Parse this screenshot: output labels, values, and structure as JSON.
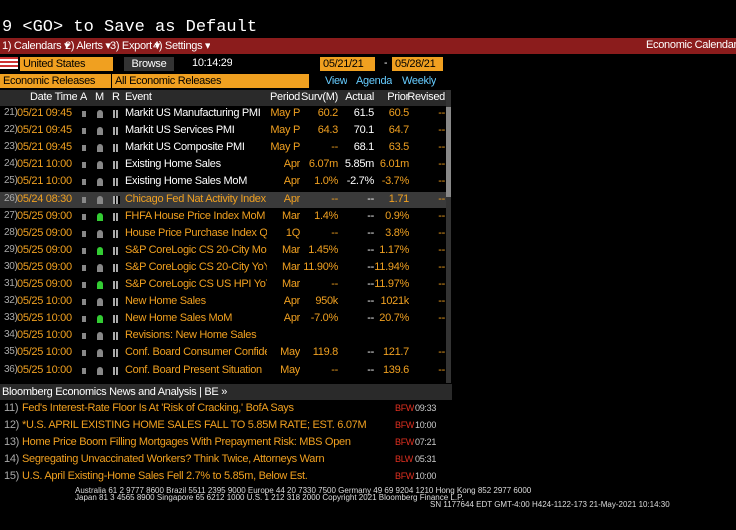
{
  "header": {
    "command": "9 <GO> to Save as Default"
  },
  "menu": {
    "items": [
      "1) Calendars ▾",
      "2) Alerts ▾",
      "3) Export ▾",
      "4) Settings ▾"
    ],
    "right": "Economic Calendars"
  },
  "toolbar": {
    "country": "United States",
    "browse": "Browse",
    "time": "10:14:29",
    "start": "05/21/21",
    "dash": "-",
    "end": "05/28/21"
  },
  "filters": {
    "type": "Economic Releases",
    "scope": "All Economic Releases",
    "view": "View",
    "agenda": "Agenda",
    "weekly": "Weekly"
  },
  "table": {
    "columns": [
      "Date Time",
      "A",
      "M",
      "R",
      "Event",
      "Period",
      "Surv(M)",
      "Actual",
      "Prior",
      "Revised"
    ],
    "rows": [
      {
        "num": "21)",
        "datetime": "05/21 09:45",
        "event": "Markit US Manufacturing PMI",
        "period": "May P",
        "survey": "60.2",
        "actual": "61.5",
        "prior": "60.5",
        "revised": "--"
      },
      {
        "num": "22)",
        "datetime": "05/21 09:45",
        "event": "Markit US Services PMI",
        "period": "May P",
        "survey": "64.3",
        "actual": "70.1",
        "prior": "64.7",
        "revised": "--"
      },
      {
        "num": "23)",
        "datetime": "05/21 09:45",
        "event": "Markit US Composite PMI",
        "period": "May P",
        "survey": "--",
        "actual": "68.1",
        "prior": "63.5",
        "revised": "--"
      },
      {
        "num": "24)",
        "datetime": "05/21 10:00",
        "event": "Existing Home Sales",
        "period": "Apr",
        "survey": "6.07m",
        "actual": "5.85m",
        "prior": "6.01m",
        "revised": "--"
      },
      {
        "num": "25)",
        "datetime": "05/21 10:00",
        "event": "Existing Home Sales MoM",
        "period": "Apr",
        "survey": "1.0%",
        "actual": "-2.7%",
        "prior": "-3.7%",
        "revised": "--"
      },
      {
        "num": "26)",
        "datetime": "05/24 08:30",
        "event": "Chicago Fed Nat Activity Index",
        "period": "Apr",
        "survey": "--",
        "actual": "--",
        "prior": "1.71",
        "revised": "--"
      },
      {
        "num": "27)",
        "datetime": "05/25 09:00",
        "event": "FHFA House Price Index MoM",
        "period": "Mar",
        "survey": "1.4%",
        "actual": "--",
        "prior": "0.9%",
        "revised": "--"
      },
      {
        "num": "28)",
        "datetime": "05/25 09:00",
        "event": "House Price Purchase Index Q..",
        "period": "1Q",
        "survey": "--",
        "actual": "--",
        "prior": "3.8%",
        "revised": "--"
      },
      {
        "num": "29)",
        "datetime": "05/25 09:00",
        "event": "S&P CoreLogic CS 20-City MoM..",
        "period": "Mar",
        "survey": "1.45%",
        "actual": "--",
        "prior": "1.17%",
        "revised": "--"
      },
      {
        "num": "30)",
        "datetime": "05/25 09:00",
        "event": "S&P CoreLogic CS 20-City YoY ..",
        "period": "Mar",
        "survey": "11.90%",
        "actual": "--",
        "prior": "11.94%",
        "revised": "--"
      },
      {
        "num": "31)",
        "datetime": "05/25 09:00",
        "event": "S&P CoreLogic CS US HPI YoY ..",
        "period": "Mar",
        "survey": "--",
        "actual": "--",
        "prior": "11.97%",
        "revised": "--"
      },
      {
        "num": "32)",
        "datetime": "05/25 10:00",
        "event": "New Home Sales",
        "period": "Apr",
        "survey": "950k",
        "actual": "--",
        "prior": "1021k",
        "revised": "--"
      },
      {
        "num": "33)",
        "datetime": "05/25 10:00",
        "event": "New Home Sales MoM",
        "period": "Apr",
        "survey": "-7.0%",
        "actual": "--",
        "prior": "20.7%",
        "revised": "--"
      },
      {
        "num": "34)",
        "datetime": "05/25 10:00",
        "event": "Revisions: New Home Sales"
      },
      {
        "num": "35)",
        "datetime": "05/25 10:00",
        "event": "Conf. Board Consumer Confide..",
        "period": "May",
        "survey": "119.8",
        "actual": "--",
        "prior": "121.7",
        "revised": "--"
      },
      {
        "num": "36)",
        "datetime": "05/25 10:00",
        "event": "Conf. Board Present Situation",
        "period": "May",
        "survey": "--",
        "actual": "--",
        "prior": "139.6",
        "revised": "--"
      }
    ]
  },
  "news": {
    "title": "Bloomberg Economics News and Analysis | BE »",
    "items": [
      {
        "num": "11)",
        "headline": "Fed's Interest-Rate Floor Is At 'Risk of Cracking,' BofA Says",
        "source": "BFW",
        "time": "09:33"
      },
      {
        "num": "12)",
        "headline": "*U.S. APRIL EXISTING HOME SALES FALL TO 5.85M RATE; EST. 6.07M",
        "source": "BFW",
        "time": "10:00"
      },
      {
        "num": "13)",
        "headline": "Home Price Boom Filling Mortgages With Prepayment Risk: MBS Open",
        "source": "BFW",
        "time": "07:21"
      },
      {
        "num": "14)",
        "headline": "Segregating Unvaccinated Workers? Think Twice, Attorneys Warn",
        "source": "BLW",
        "time": "05:31"
      },
      {
        "num": "15)",
        "headline": "U.S. April Existing-Home Sales Fell 2.7% to 5.85m, Below Est.",
        "source": "BFW",
        "time": "10:00"
      }
    ]
  },
  "footer": {
    "line1": "Australia 61 2 9777 8600 Brazil 5511 2395 9000 Europe 44 20 7330 7500 Germany 49 69 9204 1210 Hong Kong 852 2977 6000",
    "line2": "Japan 81 3 4565 8900        Singapore 65 6212 1000        U.S. 1 212 318 2000        Copyright 2021 Bloomberg Finance L.P.",
    "line3": "SN 1177644 EDT  GMT-4:00 H424-1122-173 21-May-2021 10:14:30"
  }
}
